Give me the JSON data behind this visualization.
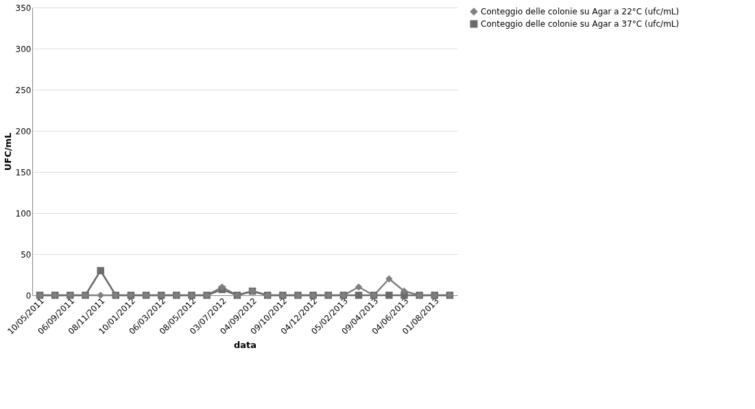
{
  "chart_data": {
    "type": "line",
    "xlabel": "data",
    "ylabel": "UFC/mL",
    "categories": [
      "10/05/2011",
      null,
      "06/09/2011",
      null,
      "08/11/2011",
      null,
      "10/01/2012",
      null,
      "06/03/2012",
      null,
      "08/05/2012",
      null,
      "03/07/2012",
      null,
      "04/09/2012",
      null,
      "09/10/2012",
      null,
      "04/12/2012",
      null,
      "05/02/2013",
      null,
      "09/04/2013",
      null,
      "04/06/2013",
      null,
      "01/08/2013",
      null
    ],
    "series": [
      {
        "name": "Conteggio delle colonie su Agar a 22°C (ufc/mL)",
        "color": "#7f7f7f",
        "marker": "diamond",
        "values": [
          0,
          0,
          0,
          0,
          0,
          0,
          0,
          0,
          0,
          0,
          0,
          0,
          10,
          0,
          5,
          0,
          0,
          0,
          0,
          0,
          0,
          10,
          0,
          20,
          5,
          0,
          0,
          0
        ]
      },
      {
        "name": "Conteggio delle colonie su Agar a 37°C (ufc/mL)",
        "color": "#6b6b6b",
        "marker": "square",
        "values": [
          0,
          0,
          0,
          0,
          30,
          0,
          0,
          0,
          0,
          0,
          0,
          0,
          7,
          0,
          5,
          0,
          0,
          0,
          0,
          0,
          0,
          0,
          0,
          0,
          0,
          0,
          0,
          0
        ]
      }
    ],
    "ylim": [
      0,
      350
    ],
    "yticks": [
      0,
      50,
      100,
      150,
      200,
      250,
      300,
      350
    ],
    "grid": "y",
    "legend": "right"
  }
}
